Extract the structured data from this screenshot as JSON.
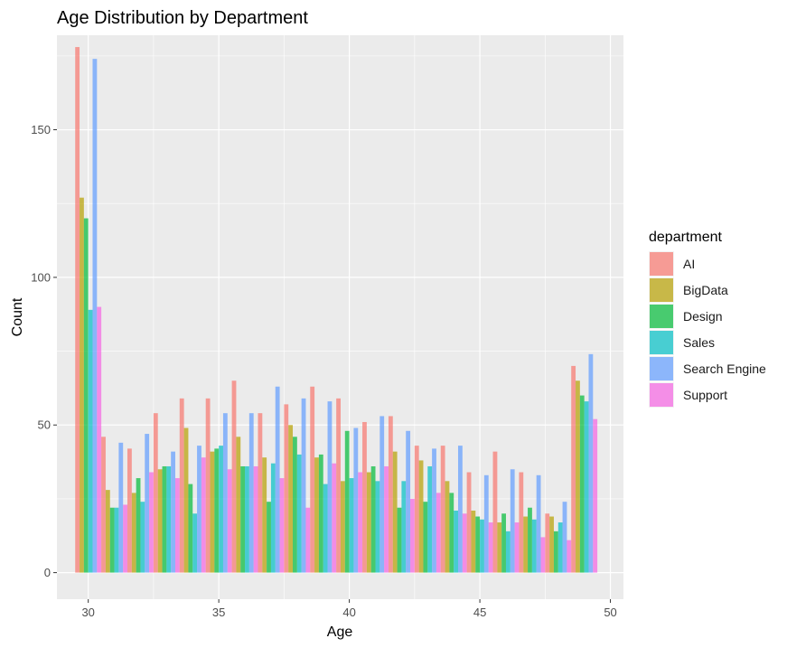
{
  "chart_data": {
    "type": "bar",
    "title": "Age Distribution by Department",
    "xlabel": "Age",
    "ylabel": "Count",
    "xlim": [
      28.8,
      50.5
    ],
    "ylim": [
      -9,
      182
    ],
    "x_ticks": [
      30,
      35,
      40,
      45,
      50
    ],
    "y_ticks": [
      0,
      50,
      100,
      150
    ],
    "grid": true,
    "legend_title": "department",
    "legend_position": "right",
    "bins": [
      30,
      31,
      32,
      33,
      34,
      35,
      36,
      37,
      38,
      39,
      40,
      41,
      42,
      43,
      44,
      45,
      46,
      47,
      48,
      49
    ],
    "bin_width": 1,
    "series": [
      {
        "name": "AI",
        "color": "#F8766D",
        "values": [
          178,
          46,
          42,
          54,
          59,
          59,
          65,
          54,
          57,
          63,
          59,
          51,
          53,
          43,
          43,
          34,
          41,
          34,
          20,
          70
        ]
      },
      {
        "name": "BigData",
        "color": "#B79F00",
        "values": [
          127,
          28,
          27,
          35,
          49,
          41,
          46,
          39,
          50,
          39,
          31,
          34,
          41,
          38,
          31,
          21,
          17,
          19,
          19,
          65
        ]
      },
      {
        "name": "Design",
        "color": "#00BA38",
        "values": [
          120,
          22,
          32,
          36,
          30,
          42,
          36,
          24,
          46,
          40,
          48,
          36,
          22,
          24,
          27,
          19,
          20,
          22,
          14,
          60
        ]
      },
      {
        "name": "Sales",
        "color": "#00BFC4",
        "values": [
          89,
          22,
          24,
          36,
          20,
          43,
          36,
          37,
          40,
          30,
          32,
          31,
          31,
          36,
          21,
          18,
          14,
          18,
          17,
          58
        ]
      },
      {
        "name": "Search Engine",
        "color": "#619CFF",
        "values": [
          174,
          44,
          47,
          41,
          43,
          54,
          54,
          63,
          59,
          58,
          49,
          53,
          48,
          42,
          43,
          33,
          35,
          33,
          24,
          74
        ]
      },
      {
        "name": "Support",
        "color": "#F564E3",
        "values": [
          90,
          23,
          34,
          32,
          39,
          35,
          36,
          32,
          22,
          37,
          34,
          36,
          25,
          27,
          20,
          17,
          17,
          12,
          11,
          52
        ]
      }
    ]
  }
}
